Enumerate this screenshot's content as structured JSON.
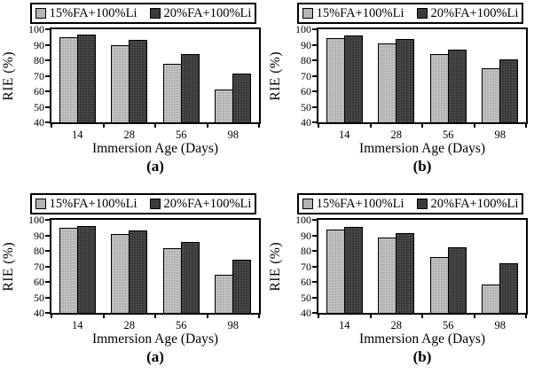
{
  "figure": {
    "background": "#ffffff",
    "axis_color": "#000000",
    "series_colors": {
      "light": "#b4b4b4",
      "dark": "#3b3b3b"
    }
  },
  "chart_data": [
    {
      "type": "bar",
      "panel_label": "(a)",
      "position": "top-left",
      "xlabel": "Immersion Age (Days)",
      "ylabel": "RIE (%)",
      "ylim": [
        40,
        100
      ],
      "yticks": [
        40,
        50,
        60,
        70,
        80,
        90,
        100
      ],
      "grid": false,
      "legend_position": "top",
      "categories": [
        "14",
        "28",
        "56",
        "98"
      ],
      "series": [
        {
          "name": "15%FA+100%Li",
          "color": "#b4b4b4",
          "values": [
            95,
            90,
            78,
            61
          ]
        },
        {
          "name": "20%FA+100%Li",
          "color": "#3b3b3b",
          "values": [
            96.5,
            93,
            84,
            71.5
          ]
        }
      ]
    },
    {
      "type": "bar",
      "panel_label": "(b)",
      "position": "top-right",
      "xlabel": "Immersion Age (Days)",
      "ylabel": "RIE (%)",
      "ylim": [
        40,
        100
      ],
      "yticks": [
        40,
        50,
        60,
        70,
        80,
        90,
        100
      ],
      "grid": false,
      "legend_position": "top",
      "categories": [
        "14",
        "28",
        "56",
        "98"
      ],
      "series": [
        {
          "name": "15%FA+100%Li",
          "color": "#b4b4b4",
          "values": [
            94.5,
            91,
            84,
            75
          ]
        },
        {
          "name": "20%FA+100%Li",
          "color": "#3b3b3b",
          "values": [
            96,
            93.5,
            87,
            80.5
          ]
        }
      ]
    },
    {
      "type": "bar",
      "panel_label": "(a)",
      "position": "bottom-left",
      "xlabel": "Immersion Age (Days)",
      "ylabel": "RIE (%)",
      "ylim": [
        40,
        100
      ],
      "yticks": [
        40,
        50,
        60,
        70,
        80,
        90,
        100
      ],
      "grid": false,
      "legend_position": "top",
      "categories": [
        "14",
        "28",
        "56",
        "98"
      ],
      "series": [
        {
          "name": "15%FA+100%Li",
          "color": "#b4b4b4",
          "values": [
            95,
            91,
            81.5,
            64.5
          ]
        },
        {
          "name": "20%FA+100%Li",
          "color": "#3b3b3b",
          "values": [
            96,
            93,
            86,
            74.5
          ]
        }
      ]
    },
    {
      "type": "bar",
      "panel_label": "(b)",
      "position": "bottom-right",
      "xlabel": "Immersion Age (Days)",
      "ylabel": "RIE (%)",
      "ylim": [
        40,
        100
      ],
      "yticks": [
        40,
        50,
        60,
        70,
        80,
        90,
        100
      ],
      "grid": false,
      "legend_position": "top",
      "categories": [
        "14",
        "28",
        "56",
        "98"
      ],
      "series": [
        {
          "name": "15%FA+100%Li",
          "color": "#b4b4b4",
          "values": [
            94,
            88.5,
            76,
            58.5
          ]
        },
        {
          "name": "20%FA+100%Li",
          "color": "#3b3b3b",
          "values": [
            95.5,
            91.5,
            82.5,
            72
          ]
        }
      ]
    }
  ]
}
